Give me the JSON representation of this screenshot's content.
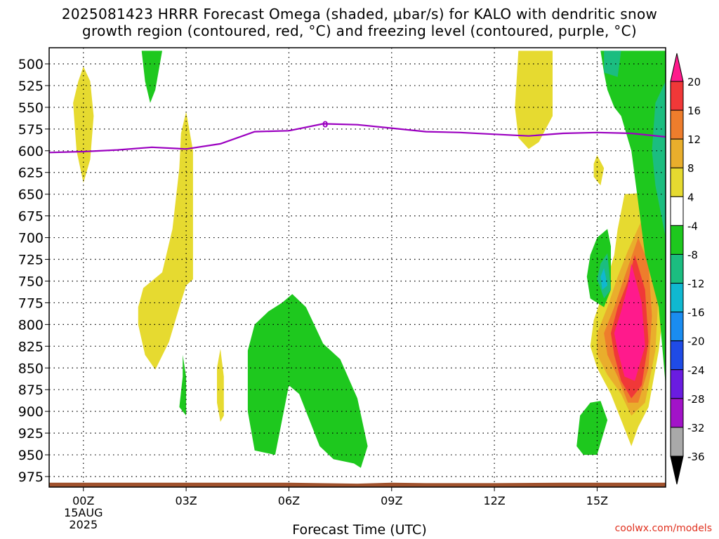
{
  "title_line1": "2025081423 HRRR Forecast Omega (shaded, μbar/s) for KALO with dendritic snow",
  "title_line2": "growth region (contoured, red, °C) and freezing level (contoured, purple, °C)",
  "credit": "coolwx.com/models",
  "chart_data": {
    "type": "heatmap",
    "title": "2025081423 HRRR Forecast Omega (shaded, μbar/s) for KALO with dendritic snow growth region (contoured, red, °C) and freezing level (contoured, purple, °C)",
    "xlabel": "Forecast Time (UTC)",
    "ylabel": "",
    "x_unit": "forecast hour",
    "xlim": [
      -1,
      17
    ],
    "ylim": [
      990,
      480
    ],
    "y_scale": "inverted pressure (mb)",
    "grid": true,
    "x_ticks": [
      {
        "h": 0,
        "label": "00Z",
        "sub": [
          "15AUG",
          "2025"
        ]
      },
      {
        "h": 3,
        "label": "03Z"
      },
      {
        "h": 6,
        "label": "06Z"
      },
      {
        "h": 9,
        "label": "09Z"
      },
      {
        "h": 12,
        "label": "12Z"
      },
      {
        "h": 15,
        "label": "15Z"
      }
    ],
    "y_ticks": [
      500,
      525,
      550,
      575,
      600,
      625,
      650,
      675,
      700,
      725,
      750,
      775,
      800,
      825,
      850,
      875,
      900,
      925,
      950,
      975
    ],
    "colorbar": {
      "levels": [
        "20",
        "16",
        "12",
        "8",
        "4",
        "-4",
        "-8",
        "-12",
        "-16",
        "-20",
        "-24",
        "-28",
        "-32",
        "-36"
      ],
      "colors": [
        "#ff1a8c",
        "#f03838",
        "#ee7d2c",
        "#e9ae2c",
        "#e6da30",
        "#ffffff",
        "#1ec81e",
        "#1bbd80",
        "#10b8d0",
        "#1a8cf0",
        "#1f4be6",
        "#6a1ce0",
        "#a213c8",
        "#a9a9a9",
        "#000000"
      ]
    },
    "freezing_level": {
      "label": "0",
      "color": "#9b00c0",
      "points": [
        [
          -1,
          602
        ],
        [
          0,
          601
        ],
        [
          1,
          599
        ],
        [
          2,
          596
        ],
        [
          3,
          598
        ],
        [
          4,
          592
        ],
        [
          5,
          578
        ],
        [
          6,
          577
        ],
        [
          7,
          569
        ],
        [
          8,
          570
        ],
        [
          9,
          574
        ],
        [
          10,
          578
        ],
        [
          11,
          579
        ],
        [
          12,
          581
        ],
        [
          13,
          583
        ],
        [
          14,
          580
        ],
        [
          15,
          579
        ],
        [
          16,
          580
        ],
        [
          17,
          584
        ]
      ]
    },
    "omega_regions": [
      {
        "level": "4",
        "points": [
          [
            0,
            503
          ],
          [
            0.2,
            520
          ],
          [
            0.3,
            560
          ],
          [
            0.2,
            610
          ],
          [
            0,
            637
          ],
          [
            -0.2,
            600
          ],
          [
            -0.3,
            545
          ],
          [
            -0.15,
            520
          ]
        ]
      },
      {
        "level": "4",
        "points": [
          [
            3,
            555
          ],
          [
            3.2,
            600
          ],
          [
            3.2,
            690
          ],
          [
            3.2,
            748
          ],
          [
            3.0,
            755
          ],
          [
            2.8,
            780
          ],
          [
            2.5,
            820
          ],
          [
            2.1,
            852
          ],
          [
            1.8,
            835
          ],
          [
            1.6,
            800
          ],
          [
            1.6,
            780
          ],
          [
            1.75,
            758
          ],
          [
            2.3,
            740
          ],
          [
            2.6,
            690
          ],
          [
            2.8,
            620
          ],
          [
            2.85,
            580
          ]
        ]
      },
      {
        "level": "4",
        "points": [
          [
            4,
            828
          ],
          [
            4.1,
            860
          ],
          [
            4.1,
            905
          ],
          [
            4,
            912
          ],
          [
            3.9,
            890
          ],
          [
            3.9,
            850
          ]
        ]
      },
      {
        "level": "4",
        "points": [
          [
            12.7,
            485
          ],
          [
            13.7,
            485
          ],
          [
            13.7,
            560
          ],
          [
            13.3,
            590
          ],
          [
            13.0,
            598
          ],
          [
            12.7,
            585
          ],
          [
            12.6,
            550
          ]
        ]
      },
      {
        "level": "4",
        "points": [
          [
            15.0,
            605
          ],
          [
            15.2,
            620
          ],
          [
            15.1,
            640
          ],
          [
            14.9,
            630
          ],
          [
            14.9,
            615
          ]
        ]
      },
      {
        "level": "4",
        "points": [
          [
            15.8,
            650
          ],
          [
            16.5,
            648
          ],
          [
            16.8,
            690
          ],
          [
            17.0,
            760
          ],
          [
            16.8,
            830
          ],
          [
            16.5,
            895
          ],
          [
            16.2,
            918
          ],
          [
            16.0,
            940
          ],
          [
            15.8,
            920
          ],
          [
            15.4,
            880
          ],
          [
            15.0,
            850
          ],
          [
            14.8,
            825
          ],
          [
            14.9,
            795
          ],
          [
            15.2,
            760
          ],
          [
            15.5,
            720
          ],
          [
            15.6,
            690
          ]
        ]
      },
      {
        "level": "8",
        "points": [
          [
            16.3,
            680
          ],
          [
            16.6,
            700
          ],
          [
            16.8,
            760
          ],
          [
            16.7,
            830
          ],
          [
            16.4,
            890
          ],
          [
            16.0,
            905
          ],
          [
            15.7,
            880
          ],
          [
            15.3,
            858
          ],
          [
            15.0,
            835
          ],
          [
            15.0,
            810
          ],
          [
            15.3,
            780
          ],
          [
            15.6,
            745
          ],
          [
            15.9,
            715
          ]
        ]
      },
      {
        "level": "12",
        "points": [
          [
            16.2,
            700
          ],
          [
            16.5,
            730
          ],
          [
            16.6,
            790
          ],
          [
            16.5,
            850
          ],
          [
            16.2,
            890
          ],
          [
            15.9,
            890
          ],
          [
            15.6,
            860
          ],
          [
            15.3,
            835
          ],
          [
            15.2,
            810
          ],
          [
            15.5,
            780
          ],
          [
            15.8,
            745
          ]
        ]
      },
      {
        "level": "16",
        "points": [
          [
            16.1,
            720
          ],
          [
            16.4,
            760
          ],
          [
            16.5,
            820
          ],
          [
            16.3,
            870
          ],
          [
            16.0,
            885
          ],
          [
            15.7,
            865
          ],
          [
            15.5,
            835
          ],
          [
            15.4,
            810
          ],
          [
            15.6,
            780
          ],
          [
            15.9,
            750
          ]
        ]
      },
      {
        "level": "20",
        "points": [
          [
            16.0,
            730
          ],
          [
            16.3,
            775
          ],
          [
            16.4,
            825
          ],
          [
            16.1,
            865
          ],
          [
            15.8,
            860
          ],
          [
            15.6,
            830
          ],
          [
            15.5,
            810
          ],
          [
            15.7,
            785
          ],
          [
            15.9,
            755
          ]
        ]
      },
      {
        "level": "-4",
        "points": [
          [
            1.7,
            485
          ],
          [
            2.3,
            485
          ],
          [
            2.1,
            530
          ],
          [
            1.95,
            545
          ],
          [
            1.8,
            520
          ]
        ]
      },
      {
        "level": "-4",
        "points": [
          [
            2.9,
            835
          ],
          [
            3.0,
            860
          ],
          [
            3.0,
            905
          ],
          [
            2.8,
            895
          ],
          [
            2.9,
            860
          ]
        ]
      },
      {
        "level": "-4",
        "points": [
          [
            6.1,
            765
          ],
          [
            6.5,
            780
          ],
          [
            7.0,
            822
          ],
          [
            7.5,
            840
          ],
          [
            8.0,
            885
          ],
          [
            8.3,
            940
          ],
          [
            8.1,
            965
          ],
          [
            7.9,
            960
          ],
          [
            7.3,
            955
          ],
          [
            6.9,
            940
          ],
          [
            6.6,
            910
          ],
          [
            6.3,
            880
          ],
          [
            6.0,
            870
          ],
          [
            5.8,
            910
          ],
          [
            5.6,
            950
          ],
          [
            5.0,
            945
          ],
          [
            4.8,
            900
          ],
          [
            4.8,
            830
          ],
          [
            5.0,
            800
          ],
          [
            5.4,
            785
          ],
          [
            5.8,
            775
          ]
        ]
      },
      {
        "level": "-4",
        "points": [
          [
            15.3,
            690
          ],
          [
            15.4,
            710
          ],
          [
            15.4,
            760
          ],
          [
            15.2,
            780
          ],
          [
            14.8,
            770
          ],
          [
            14.7,
            745
          ],
          [
            14.8,
            720
          ],
          [
            15.0,
            700
          ]
        ]
      },
      {
        "level": "-4",
        "points": [
          [
            15.1,
            888
          ],
          [
            15.3,
            910
          ],
          [
            15.0,
            950
          ],
          [
            14.6,
            950
          ],
          [
            14.4,
            940
          ],
          [
            14.5,
            905
          ],
          [
            14.8,
            890
          ]
        ]
      },
      {
        "level": "-4",
        "points": [
          [
            15.1,
            485
          ],
          [
            17,
            485
          ],
          [
            17,
            870
          ],
          [
            16.8,
            780
          ],
          [
            16.4,
            720
          ],
          [
            16.2,
            660
          ],
          [
            16.0,
            600
          ],
          [
            15.7,
            560
          ],
          [
            15.5,
            550
          ],
          [
            15.3,
            530
          ],
          [
            15.2,
            510
          ]
        ]
      },
      {
        "level": "-8",
        "points": [
          [
            15.3,
            718
          ],
          [
            15.4,
            760
          ],
          [
            15.2,
            770
          ],
          [
            15.0,
            748
          ],
          [
            15.1,
            730
          ]
        ]
      },
      {
        "level": "-8",
        "points": [
          [
            15.2,
            485
          ],
          [
            15.7,
            485
          ],
          [
            15.6,
            515
          ],
          [
            15.2,
            510
          ]
        ]
      },
      {
        "level": "-8",
        "points": [
          [
            16.7,
            545
          ],
          [
            17,
            520
          ],
          [
            17,
            700
          ],
          [
            16.7,
            640
          ],
          [
            16.6,
            600
          ]
        ]
      },
      {
        "level": "-12",
        "points": [
          [
            15.2,
            735
          ],
          [
            15.3,
            755
          ],
          [
            15.15,
            760
          ],
          [
            15.1,
            745
          ]
        ]
      }
    ],
    "ground": [
      [
        -1,
        990
      ],
      [
        -1,
        981
      ],
      [
        0,
        981
      ],
      [
        3,
        981
      ],
      [
        6,
        981
      ],
      [
        8,
        983
      ],
      [
        9,
        981
      ],
      [
        10,
        982
      ],
      [
        12,
        982
      ],
      [
        14,
        981
      ],
      [
        17,
        981
      ],
      [
        17,
        990
      ]
    ]
  }
}
